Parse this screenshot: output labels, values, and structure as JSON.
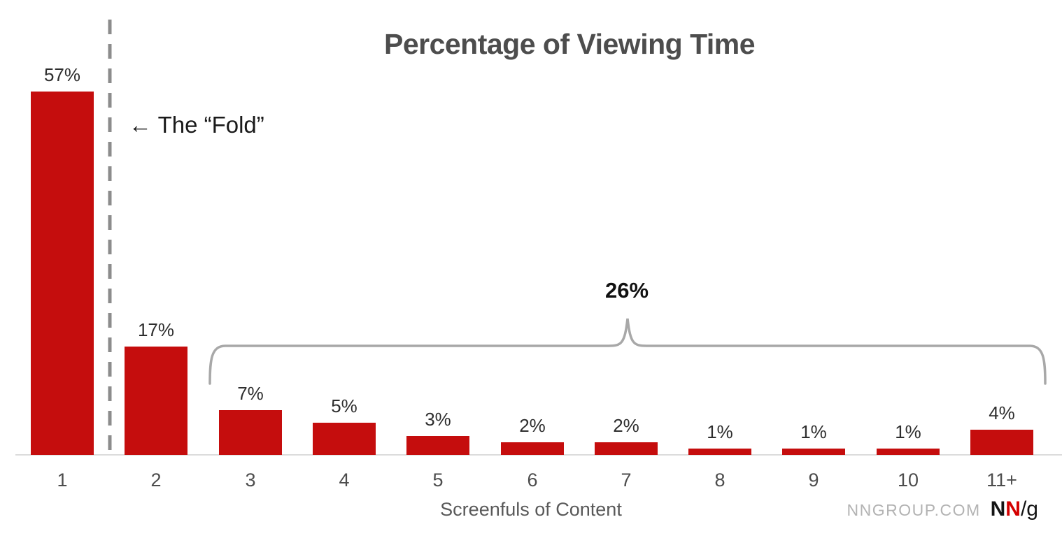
{
  "chart_data": {
    "type": "bar",
    "title": "Percentage of Viewing Time",
    "xlabel": "Screenfuls of Content",
    "ylabel": "",
    "categories": [
      "1",
      "2",
      "3",
      "4",
      "5",
      "6",
      "7",
      "8",
      "9",
      "10",
      "11+"
    ],
    "values": [
      57,
      17,
      7,
      5,
      3,
      2,
      2,
      1,
      1,
      1,
      4
    ],
    "value_labels": [
      "57%",
      "17%",
      "7%",
      "5%",
      "3%",
      "2%",
      "2%",
      "1%",
      "1%",
      "1%",
      "4%"
    ],
    "ylim": [
      0,
      60
    ],
    "grid": false,
    "legend": false,
    "bar_color": "#c50d0d",
    "annotations": {
      "fold_label": "← The “Fold”",
      "fold_line": "dashed vertical line after first bar",
      "brace_label": "26%",
      "brace_span_categories": [
        "3",
        "11+"
      ]
    },
    "colors": {
      "bar": "#c50d0d",
      "title": "#4d4d4d",
      "brace": "#a8a8a8",
      "fold_line": "#8c8c8c",
      "baseline": "#dcdcdc"
    }
  },
  "footer": {
    "site": "NNGROUP.COM",
    "logo": {
      "n1": "N",
      "n2": "N",
      "slash_g": "/g"
    }
  }
}
